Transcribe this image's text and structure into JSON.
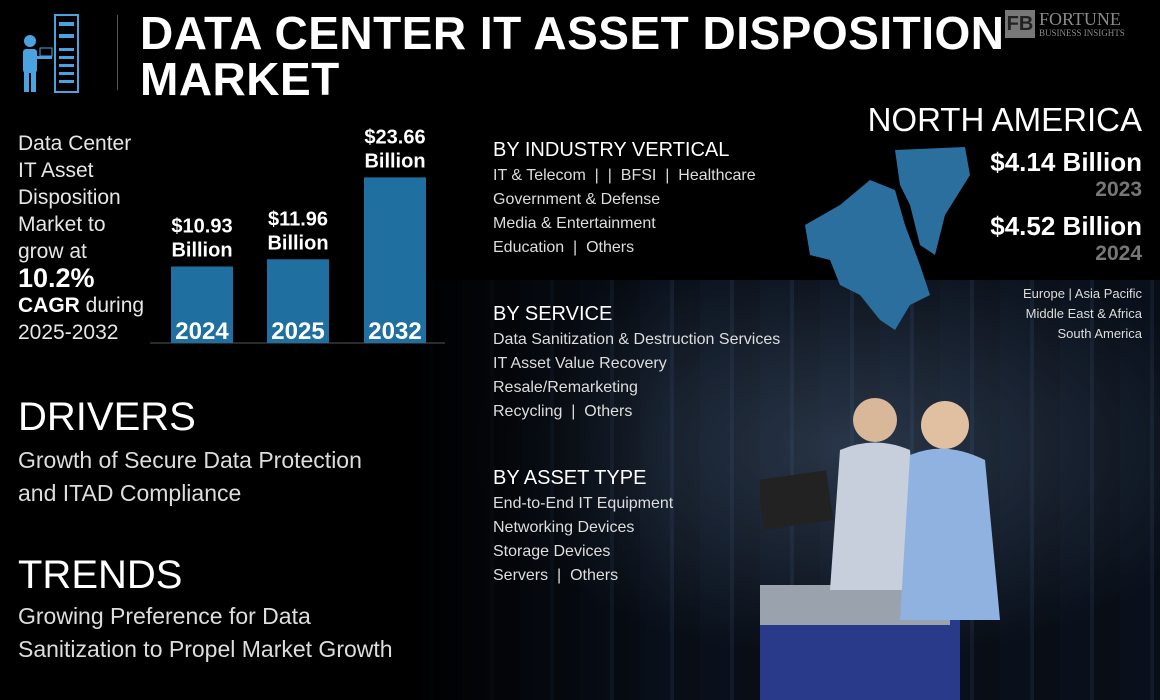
{
  "header": {
    "title_line1": "DATA CENTER IT ASSET DISPOSITION",
    "title_line2": "MARKET",
    "logo_brand": "FORTUNE",
    "logo_sub": "BUSINESS INSIGHTS"
  },
  "intro": {
    "l1": "Data Center",
    "l2": "IT Asset",
    "l3": "Disposition",
    "l4": "Market to",
    "l5": "grow at",
    "cagr": "10.2%",
    "cagr_label": "CAGR",
    "during": " during",
    "period": "2025-2032"
  },
  "chart_data": {
    "type": "bar",
    "categories": [
      "2024",
      "2025",
      "2032"
    ],
    "values": [
      10.93,
      11.96,
      23.66
    ],
    "labels": [
      "$10.93",
      "$11.96",
      "$23.66"
    ],
    "unit": "Billion",
    "ylim": [
      0,
      24
    ],
    "color": "#1f6fa0",
    "grid": false
  },
  "segments": [
    {
      "title": "BY INDUSTRY VERTICAL",
      "lines": [
        "IT & Telecom  |  |  BFSI  |  Healthcare",
        "Government & Defense",
        "Media & Entertainment",
        "Education  |  Others"
      ]
    },
    {
      "title": "BY SERVICE",
      "lines": [
        "Data Sanitization & Destruction Services",
        "IT Asset Value Recovery",
        "Resale/Remarketing",
        "Recycling  |  Others"
      ]
    },
    {
      "title": "BY ASSET TYPE",
      "lines": [
        "End-to-End IT Equipment",
        "Networking Devices",
        "Storage Devices",
        "Servers  |  Others"
      ]
    }
  ],
  "drivers": {
    "title": "DRIVERS",
    "text1": "Growth of Secure Data Protection",
    "text2": "and ITAD Compliance"
  },
  "trends": {
    "title": "TRENDS",
    "text1": "Growing Preference for Data",
    "text2": "Sanitization to Propel Market Growth"
  },
  "region": {
    "name": "NORTH AMERICA",
    "v1": "$4.14 Billion",
    "y1": "2023",
    "v2": "$4.52 Billion",
    "y2": "2024",
    "others1": "Europe  |  Asia Pacific",
    "others2": "Middle East & Africa",
    "others3": "South America",
    "map_color": "#2a6f9e"
  }
}
